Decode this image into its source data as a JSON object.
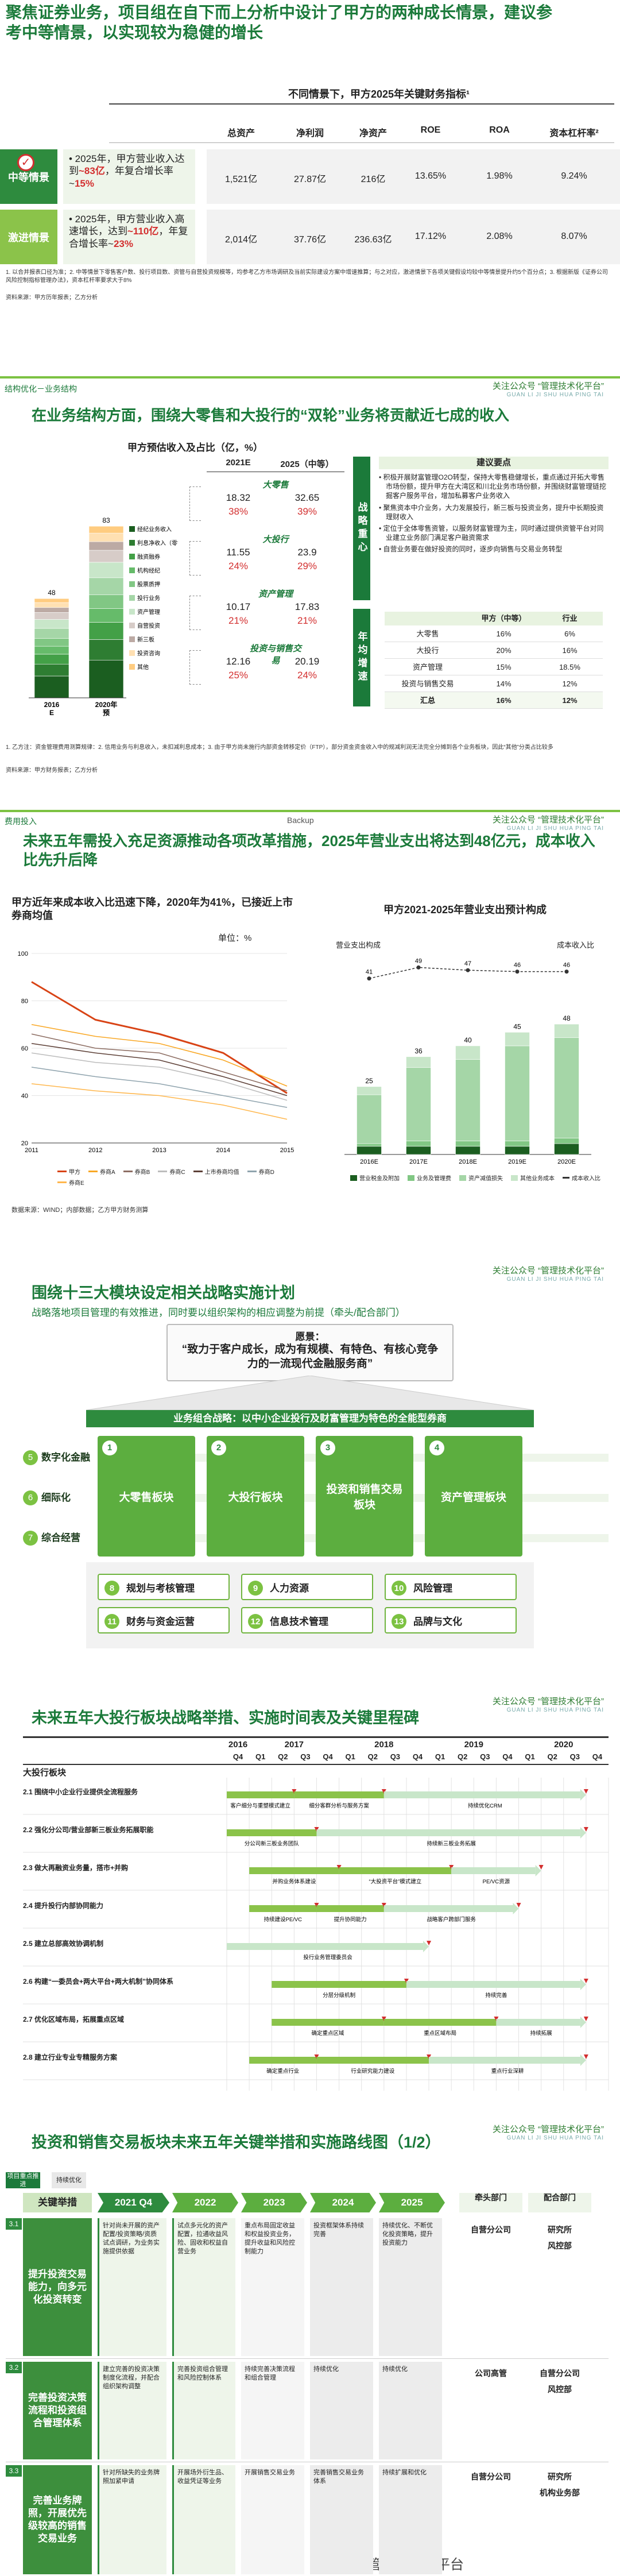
{
  "watermark": {
    "line1": "关注公众号 “管理技术化平台”",
    "line2": "GUAN LI JI SHU HUA PING TAI"
  },
  "slide1": {
    "title": "聚焦证券业务，项目组在自下而上分析中设计了甲方的两种成长情景，建议参考中等情景，以实现较为稳健的增长",
    "table_title": "不同情景下，甲方2025年关键财务指标¹",
    "headers": [
      "总资产",
      "净利润",
      "净资产",
      "ROE",
      "ROA",
      "资本杠杆率²"
    ],
    "rows": [
      {
        "label": "中等情景",
        "desc_a": "2025年，甲方营业收入达到",
        "desc_b": "~83亿",
        "desc_c": "，年复合增长率~",
        "desc_d": "15%",
        "values": [
          "1,521亿",
          "27.87亿",
          "216亿",
          "13.65%",
          "1.98%",
          "9.24%"
        ]
      },
      {
        "label": "激进情景",
        "desc_a": "2025年，甲方营业收入高速增长，达到",
        "desc_b": "~110亿",
        "desc_c": "，年复合增长率~",
        "desc_d": "23%",
        "values": [
          "2,014亿",
          "37.76亿",
          "236.63亿",
          "17.12%",
          "2.08%",
          "8.07%"
        ]
      }
    ],
    "note": "1. 以合并报表口径为准；2. 中等情景下零售客户数、投行项目数、资管与自营投资规模等，均参考乙方市场调研及当前实际建设方案中增速推算；与之对应，激进情景下各项关键假设均较中等情景提升约5个百分点；3. 根据新版《证券公司风险控制指标管理办法》，资本杠杆率要求大于8%",
    "source": "资料来源：甲方历年报表；乙方分析"
  },
  "slide2": {
    "tag": "结构优化－业务结构",
    "title": "在业务结构方面，围绕大零售和大投行的“双轮”业务将贡献近七成的收入",
    "chart_title": "甲方预估收入及占比（亿，%）",
    "bars": [
      {
        "label": "2016\nE",
        "value": 48
      },
      {
        "label": "2020年\n预",
        "value": 83
      }
    ],
    "legend": [
      "经纪业务收入",
      "利息净收入（零售）",
      "融资融券",
      "机构经纪",
      "股票质押",
      "投行业务",
      "资产管理",
      "自营投资",
      "新三板",
      "投资咨询",
      "其他"
    ],
    "mid_headers": [
      "2021E",
      "2025（中等）"
    ],
    "mid_rows": [
      {
        "name": "大零售",
        "a": "18.32",
        "b": "32.65",
        "pa": "38%",
        "pb": "39%"
      },
      {
        "name": "大投行",
        "a": "11.55",
        "b": "23.9",
        "pa": "24%",
        "pb": "29%"
      },
      {
        "name": "资产管理",
        "a": "10.17",
        "b": "17.83",
        "pa": "21%",
        "pb": "21%"
      },
      {
        "name": "投资与销售交易",
        "a": "12.16",
        "b": "20.19",
        "pa": "25%",
        "pb": "24%"
      }
    ],
    "side_title1": "战略重心",
    "key_points_title": "建议要点",
    "key_points": [
      "积极开展财富管理O2O转型，保持大零售稳健增长，重点通过开拓大零售市场份额，提升甲方在大湾区和川北业务市场份额，并围绕财富管理链挖掘客户服务平台，增加私募客户业务收入",
      "聚焦资本中介业务，大力发展投行，新三板与投资业务，提升中长期投资理财收入",
      "定位于全体零售资管，以服务财富管理为主，同时通过提供资管平台对同业建立业务部门满足客户融资需求",
      "自营业务要在做好投资的同时，逐步向销售与交易业务转型"
    ],
    "side_title2": "年均增速",
    "growth_headers": [
      "",
      "甲方（中等）",
      "行业"
    ],
    "growth_rows": [
      [
        "大零售",
        "16%",
        "6%"
      ],
      [
        "大投行",
        "20%",
        "16%"
      ],
      [
        "资产管理",
        "15%",
        "18.5%"
      ],
      [
        "投资与销售交易",
        "14%",
        "12%"
      ],
      [
        "汇总",
        "16%",
        "12%"
      ]
    ],
    "note": "1. 乙方注：资金管理费用测算规律：2. 信用业务与利息收入，未扣减利息成本；3. 由于甲方尚未施行内部资金转移定价（FTP），部分资金资金收入中的规减利润无法完全分摊到各个业务板块，因此“其他”分类占比较多",
    "source": "资料来源：甲方财务报表；乙方分析"
  },
  "slide3": {
    "tag": "费用投入",
    "backup": "Backup",
    "title": "未来五年需投入充足资源推动各项改革措施，2025年营业支出将达到48亿元，成本收入比先升后降",
    "left_title": "甲方近年来成本收入比迅速下降，2020年为41%，已接近上市券商均值",
    "unit": "单位：%",
    "left_chart": {
      "type": "line",
      "x": [
        2011,
        2012,
        2013,
        2014,
        2015
      ],
      "ylim": [
        20,
        100
      ],
      "yticks": [
        20,
        40,
        60,
        80,
        100
      ],
      "series": [
        {
          "name": "甲方",
          "values": [
            88,
            72,
            66,
            58,
            41
          ]
        },
        {
          "name": "券商A",
          "values": [
            70,
            65,
            62,
            55,
            44
          ]
        },
        {
          "name": "券商B",
          "values": [
            66,
            60,
            58,
            50,
            42
          ]
        },
        {
          "name": "券商C",
          "values": [
            58,
            54,
            52,
            46,
            38
          ]
        },
        {
          "name": "上市券商均值",
          "values": [
            62,
            58,
            55,
            48,
            40
          ]
        },
        {
          "name": "券商D",
          "values": [
            52,
            48,
            45,
            40,
            35
          ]
        },
        {
          "name": "券商E",
          "values": [
            45,
            42,
            40,
            36,
            30
          ]
        }
      ]
    },
    "left_source": "数据来源：WIND；内部数据；乙方甲方财务测算",
    "right_title": "甲方2021-2025年营业支出预计构成",
    "right_y1": "营业支出构成",
    "right_y2": "成本收入比",
    "right_chart": {
      "type": "bar",
      "categories": [
        "2016E",
        "2017E",
        "2018E",
        "2019E",
        "2020E"
      ],
      "totals": [
        25,
        36,
        40,
        45,
        48
      ],
      "ratio": [
        41,
        49,
        47,
        46,
        46
      ],
      "stacks": [
        [
          3,
          1,
          18,
          3
        ],
        [
          3,
          2,
          27,
          4
        ],
        [
          3,
          2,
          30,
          5
        ],
        [
          3,
          2,
          35,
          5
        ],
        [
          4,
          2,
          37,
          5
        ]
      ],
      "legend": [
        "营业税金及附加",
        "业务及管理费",
        "资产减值损失",
        "其他业务成本",
        "成本收入比"
      ]
    }
  },
  "slide4": {
    "title": "围绕十三大模块设定相关战略实施计划",
    "subtitle": "战略落地项目管理的有效推进，同时要以组织架构的相应调整为前提（牵头/配合部门）",
    "vision_label": "愿景：",
    "vision": "“致力于客户成长，成为有规模、有特色、有核心竞争力的一流现代金融服务商”",
    "band": "业务组合战略：以中小企业投行及财富管理为特色的全能型券商",
    "left_items": [
      {
        "n": "5",
        "t": "数字化金融"
      },
      {
        "n": "6",
        "t": "细际化"
      },
      {
        "n": "7",
        "t": "综合经营"
      }
    ],
    "pillars": [
      {
        "n": "1",
        "t": "大零售板块"
      },
      {
        "n": "2",
        "t": "大投行板块"
      },
      {
        "n": "3",
        "t": "投资和销售交易板块"
      },
      {
        "n": "4",
        "t": "资产管理板块"
      }
    ],
    "bottom": [
      {
        "n": "8",
        "t": "规划与考核管理"
      },
      {
        "n": "9",
        "t": "人力资源"
      },
      {
        "n": "10",
        "t": "风险管理"
      },
      {
        "n": "11",
        "t": "财务与资金运营"
      },
      {
        "n": "12",
        "t": "信息技术管理"
      },
      {
        "n": "13",
        "t": "品牌与文化"
      }
    ]
  },
  "slide5": {
    "title": "未来五年大投行板块战略举措、实施时间表及关键里程碑",
    "years": [
      "2016",
      "2017",
      "2018",
      "2019",
      "2020"
    ],
    "quarters": [
      "Q4",
      "Q1",
      "Q2",
      "Q3",
      "Q4",
      "Q1",
      "Q2",
      "Q3",
      "Q4",
      "Q1",
      "Q2",
      "Q3",
      "Q4",
      "Q1",
      "Q2",
      "Q3",
      "Q4"
    ],
    "section": "大投行板块",
    "rows": [
      "2.1 围绕中小企业行业提供全流程服务",
      "2.2 强化分公司/营业部新三板业务拓展职能",
      "2.3 做大再融资业务量，搭市+并购",
      "2.4 提升投行内部协同能力",
      "2.5 建立总部高效协调机制",
      "2.6 构建“一委员会+两大平台+两大机制”协同体系",
      "2.7 优化区域布局，拓展重点区域",
      "2.8 建立行业专业专精服务方案"
    ],
    "annotations": [
      "客户细分与重塑模式建立",
      "细分客群分析与服务方案",
      "持续优化CRM",
      "分公司新三板业务团队",
      "持续新三板业务拓展",
      "并购业务体系建设",
      "“大投资平台”模式建立",
      "PE/VC资源",
      "持续建设PE/VC",
      "提升协同能力",
      "战略客户跨部门服务",
      "投行业务管理委员会",
      "分层分级机制",
      "持续完善",
      "确定重点区域",
      "重点区域布局",
      "持续拓展",
      "确定重点行业",
      "行业研究能力建设",
      "重点行业深耕"
    ]
  },
  "slide6": {
    "title": "投资和销售交易板块未来五年关键举措和实施路线图（1/2）",
    "tag_a": "项目重点推进",
    "tag_b": "持续优化",
    "col_head": "关键举措",
    "years": [
      "2021 Q4",
      "2022",
      "2023",
      "2024",
      "2025"
    ],
    "right_heads": [
      "牵头部门",
      "配合部门"
    ],
    "groups": [
      {
        "id": "3.1",
        "name": "提升投资交易能力，向多元化投资转变",
        "cells": [
          "针对尚未开展的资产配置/投资策略/资质试点调研，为业务实施提供依据",
          "试点多元化的资产配置，拉通收益风险、固收和权益自营业务",
          "重点布局固定收益和权益投资业务，提升收益和风险控制能力",
          "投资框架体系持续完善",
          "持续优化、不断优化投资策略，提升投资能力"
        ],
        "lead": "自营分公司",
        "support": [
          "研究所",
          "风控部"
        ]
      },
      {
        "id": "3.2",
        "name": "完善投资决策流程和投资组合管理体系",
        "cells": [
          "建立完善的投资决策制度化流程，并配合组织架构调整",
          "完善投资组合管理和风险控制体系",
          "持续完善决策流程和组合管理",
          "持续优化",
          "持续优化"
        ],
        "lead": "公司高管",
        "support": [
          "自营分公司",
          "风控部"
        ]
      },
      {
        "id": "3.3",
        "name": "完善业务牌照，开展优先级较高的销售交易业务",
        "cells": [
          "针对所缺失的业务牌照加紧申请",
          "开展场外衍生品、收益凭证等业务",
          "开展销售交易业务",
          "完善销售交易业务体系",
          "持续扩展和优化"
        ],
        "lead": "自营分公司",
        "support": [
          "研究所",
          "机构业务部"
        ]
      }
    ],
    "footer_brand": "管理技术化平台"
  }
}
